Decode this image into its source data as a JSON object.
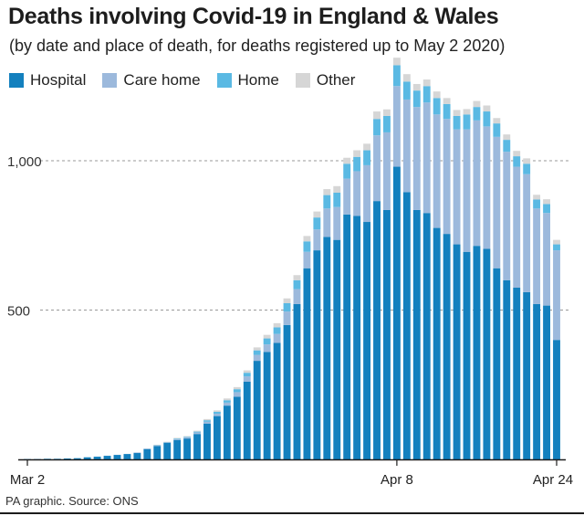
{
  "title": "Deaths involving Covid-19 in England & Wales",
  "subtitle": "(by date and place of death, for deaths registered up to May 2 2020)",
  "source": "PA graphic. Source: ONS",
  "legend": [
    {
      "label": "Hospital",
      "color": "#1380be"
    },
    {
      "label": "Care home",
      "color": "#9cb9dc"
    },
    {
      "label": "Home",
      "color": "#5ab9e3"
    },
    {
      "label": "Other",
      "color": "#d6d6d6"
    }
  ],
  "chart_data": {
    "type": "bar",
    "stacked": true,
    "ylim": [
      0,
      1350
    ],
    "yticks": [
      {
        "value": 500,
        "label": "500"
      },
      {
        "value": 1000,
        "label": "1,000"
      }
    ],
    "grid": "horizontal dashed",
    "legend_position": "top-left",
    "xtick_labels": [
      {
        "index": 0,
        "label": "Mar 2"
      },
      {
        "index": 37,
        "label": "Apr 8"
      },
      {
        "index": 53,
        "label": "Apr 24"
      }
    ],
    "categories": [
      "Mar 2",
      "Mar 3",
      "Mar 4",
      "Mar 5",
      "Mar 6",
      "Mar 7",
      "Mar 8",
      "Mar 9",
      "Mar 10",
      "Mar 11",
      "Mar 12",
      "Mar 13",
      "Mar 14",
      "Mar 15",
      "Mar 16",
      "Mar 17",
      "Mar 18",
      "Mar 19",
      "Mar 20",
      "Mar 21",
      "Mar 22",
      "Mar 23",
      "Mar 24",
      "Mar 25",
      "Mar 26",
      "Mar 27",
      "Mar 28",
      "Mar 29",
      "Mar 30",
      "Mar 31",
      "Apr 1",
      "Apr 2",
      "Apr 3",
      "Apr 4",
      "Apr 5",
      "Apr 6",
      "Apr 7",
      "Apr 8",
      "Apr 9",
      "Apr 10",
      "Apr 11",
      "Apr 12",
      "Apr 13",
      "Apr 14",
      "Apr 15",
      "Apr 16",
      "Apr 17",
      "Apr 18",
      "Apr 19",
      "Apr 20",
      "Apr 21",
      "Apr 22",
      "Apr 23",
      "Apr 24"
    ],
    "series": [
      {
        "name": "Hospital",
        "color": "#1380be",
        "values": [
          1,
          1,
          2,
          2,
          3,
          4,
          7,
          9,
          12,
          15,
          18,
          22,
          35,
          45,
          55,
          65,
          70,
          85,
          120,
          145,
          180,
          210,
          260,
          330,
          360,
          390,
          450,
          520,
          640,
          700,
          745,
          735,
          820,
          815,
          795,
          865,
          835,
          980,
          895,
          835,
          825,
          775,
          755,
          720,
          695,
          715,
          705,
          640,
          600,
          575,
          560,
          520,
          515,
          400
        ]
      },
      {
        "name": "Care home",
        "color": "#9cb9dc",
        "values": [
          0,
          0,
          0,
          0,
          0,
          0,
          0,
          0,
          0,
          0,
          0,
          1,
          1,
          2,
          2,
          3,
          4,
          5,
          6,
          8,
          10,
          15,
          18,
          20,
          25,
          30,
          45,
          50,
          55,
          70,
          95,
          110,
          120,
          150,
          190,
          220,
          260,
          270,
          310,
          345,
          370,
          380,
          385,
          385,
          410,
          420,
          410,
          440,
          430,
          405,
          395,
          320,
          310,
          300
        ]
      },
      {
        "name": "Home",
        "color": "#5ab9e3",
        "values": [
          0,
          0,
          0,
          0,
          0,
          0,
          0,
          0,
          0,
          0,
          0,
          0,
          0,
          1,
          1,
          2,
          2,
          3,
          5,
          6,
          8,
          10,
          12,
          15,
          20,
          22,
          28,
          30,
          35,
          40,
          45,
          48,
          50,
          48,
          50,
          55,
          55,
          70,
          60,
          55,
          55,
          55,
          50,
          45,
          50,
          45,
          50,
          45,
          40,
          35,
          35,
          30,
          30,
          20
        ]
      },
      {
        "name": "Other",
        "color": "#d6d6d6",
        "values": [
          0,
          0,
          0,
          0,
          0,
          0,
          0,
          0,
          0,
          0,
          0,
          0,
          0,
          1,
          1,
          2,
          2,
          3,
          4,
          5,
          6,
          7,
          8,
          10,
          12,
          14,
          16,
          17,
          18,
          20,
          20,
          22,
          20,
          22,
          22,
          25,
          22,
          25,
          25,
          22,
          22,
          22,
          20,
          20,
          18,
          20,
          20,
          18,
          18,
          18,
          18,
          16,
          16,
          15
        ]
      }
    ]
  }
}
